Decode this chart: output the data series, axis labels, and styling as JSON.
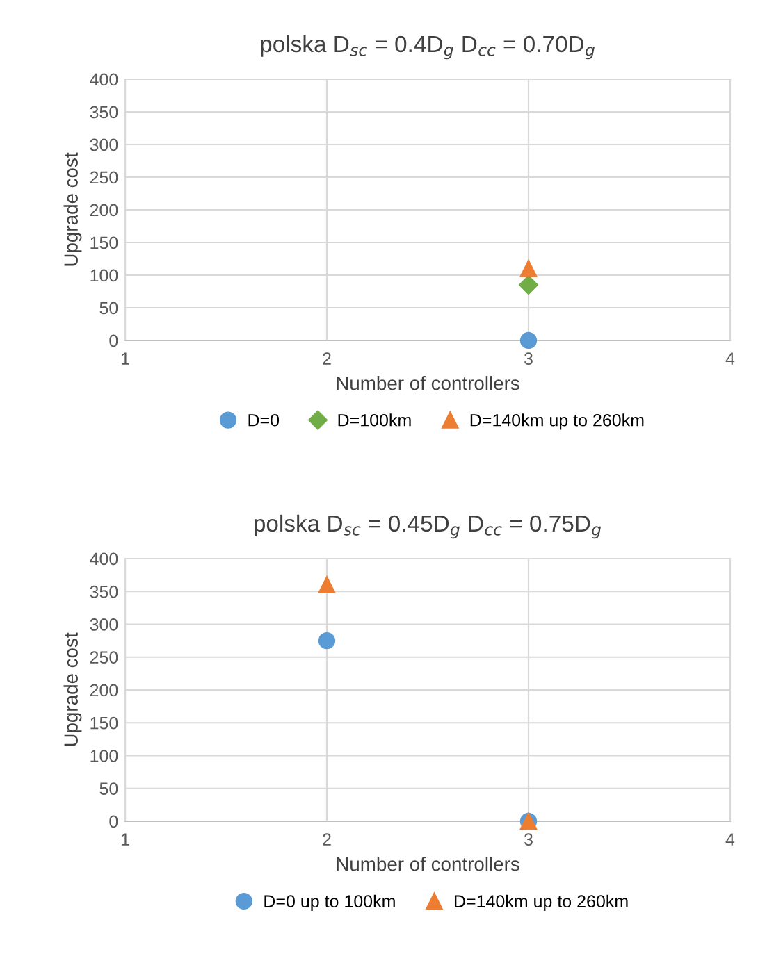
{
  "chart_data": [
    {
      "type": "scatter",
      "title": "polska D$_{sc}$ = 0.4D$_{g}$ D$_{cc}$ = 0.70D$_{g}$",
      "xlabel": "Number of controllers",
      "ylabel": "Upgrade cost",
      "categories": [
        "1",
        "2",
        "3",
        "4"
      ],
      "ylim": [
        0,
        400
      ],
      "yticks": [
        0,
        50,
        100,
        150,
        200,
        250,
        300,
        350,
        400
      ],
      "grid": true,
      "legend": "bottom",
      "series": [
        {
          "name": "D=0",
          "color": "#5b9bd5",
          "marker": "circle",
          "values": [
            null,
            null,
            0,
            null
          ]
        },
        {
          "name": "D=100km",
          "color": "#70ad47",
          "marker": "diamond",
          "values": [
            null,
            null,
            85,
            null
          ]
        },
        {
          "name": "D=140km up to 260km",
          "color": "#ed7d31",
          "marker": "triangle",
          "values": [
            null,
            null,
            110,
            null
          ]
        }
      ]
    },
    {
      "type": "scatter",
      "title": "polska D$_{sc}$ = 0.45D$_{g}$ D$_{cc}$ = 0.75D$_{g}$",
      "xlabel": "Number of controllers",
      "ylabel": "Upgrade cost",
      "categories": [
        "1",
        "2",
        "3",
        "4"
      ],
      "ylim": [
        0,
        400
      ],
      "yticks": [
        0,
        50,
        100,
        150,
        200,
        250,
        300,
        350,
        400
      ],
      "grid": true,
      "legend": "bottom",
      "series": [
        {
          "name": "D=0 up to 100km",
          "color": "#5b9bd5",
          "marker": "circle",
          "values": [
            null,
            275,
            0,
            null
          ]
        },
        {
          "name": "D=140km up to 260km",
          "color": "#ed7d31",
          "marker": "triangle",
          "values": [
            null,
            360,
            0,
            null
          ]
        }
      ]
    }
  ]
}
